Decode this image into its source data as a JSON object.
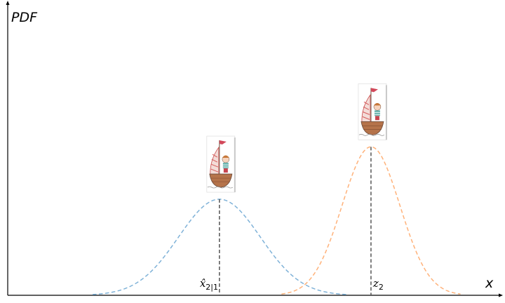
{
  "chart_data": {
    "type": "line",
    "ylabel": "PDF",
    "xlabel": "x",
    "xlim": [
      0,
      10
    ],
    "ylim": [
      0,
      1.0
    ],
    "grid": false,
    "series": [
      {
        "mean": 4.4,
        "sigma": 0.85,
        "peak": 0.33,
        "color": "#7fb2d8",
        "style": "dashed"
      },
      {
        "mean": 7.55,
        "sigma": 0.6,
        "peak": 0.51,
        "color": "#ffb27a",
        "style": "dashed"
      }
    ],
    "markers": [
      {
        "x": 4.4,
        "label_main": "x̂",
        "label_sub": "2|1"
      },
      {
        "x": 7.55,
        "label_main": "z",
        "label_sub": "2"
      }
    ],
    "icons": [
      "sailboat-icon",
      "sailboat-icon"
    ]
  }
}
